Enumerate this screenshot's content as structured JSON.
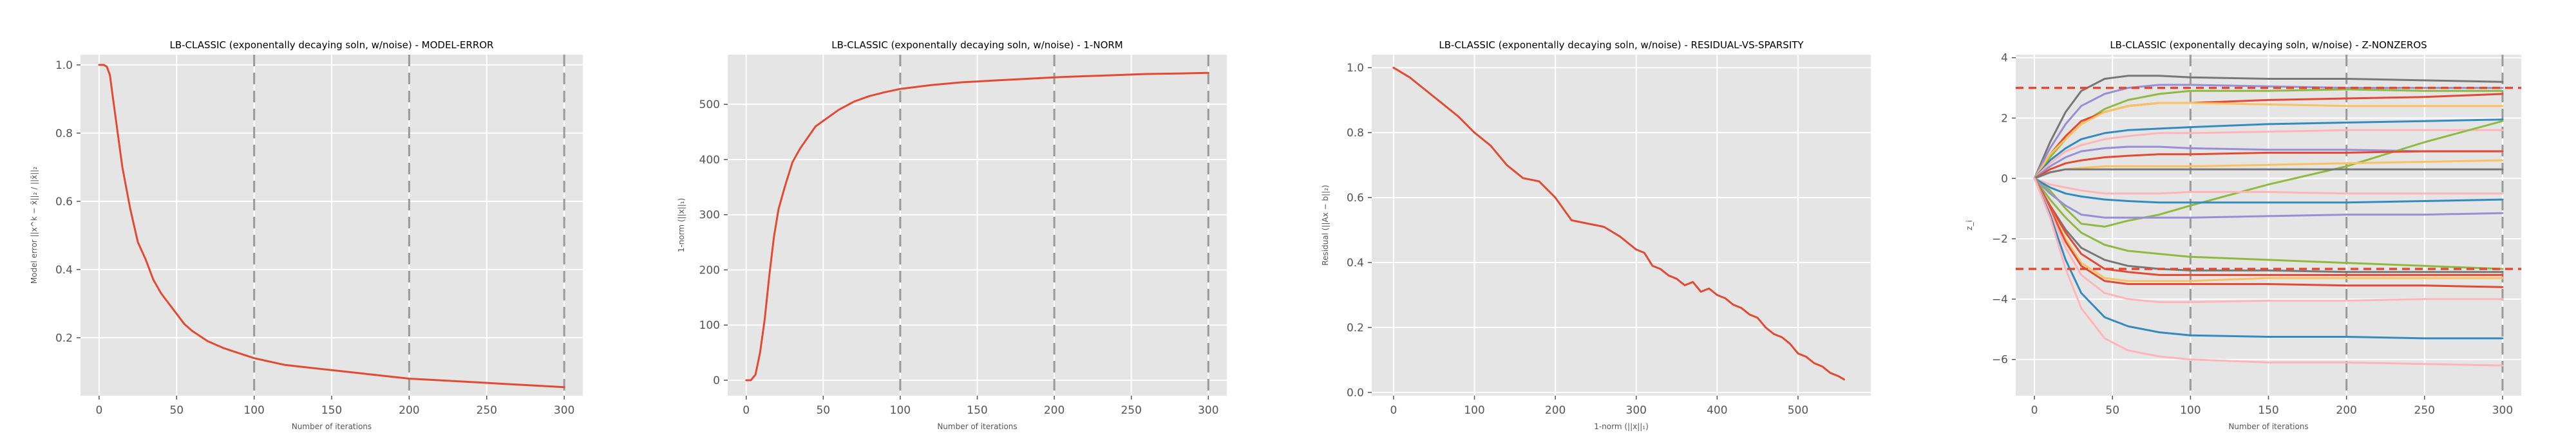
{
  "chart_data": [
    {
      "id": "model-error",
      "type": "line",
      "title": "LB-CLASSIC (exponentally decaying soln, w/noise) - MODEL-ERROR",
      "xlabel": "Number of iterations",
      "ylabel": "Model error ||x^k − x̄||₂ / ||x̄||₂",
      "xlim": [
        -12,
        312
      ],
      "ylim": [
        0.03,
        1.03
      ],
      "xticks": [
        0,
        50,
        100,
        150,
        200,
        250,
        300
      ],
      "yticks": [
        0.2,
        0.4,
        0.6,
        0.8,
        1.0
      ],
      "ytick_labels": [
        "0.2",
        "0.4",
        "0.6",
        "0.8",
        "1.0"
      ],
      "grid": true,
      "vlines": [
        100,
        200,
        300
      ],
      "series": [
        {
          "color": "#e24a33",
          "x": [
            0,
            3,
            5,
            7,
            9,
            12,
            15,
            20,
            25,
            30,
            35,
            40,
            45,
            50,
            55,
            60,
            70,
            80,
            90,
            100,
            110,
            120,
            140,
            160,
            180,
            200,
            220,
            240,
            260,
            280,
            300
          ],
          "y": [
            1.0,
            1.0,
            0.995,
            0.97,
            0.9,
            0.8,
            0.7,
            0.58,
            0.48,
            0.43,
            0.37,
            0.33,
            0.3,
            0.27,
            0.24,
            0.22,
            0.19,
            0.17,
            0.155,
            0.14,
            0.13,
            0.12,
            0.11,
            0.1,
            0.09,
            0.08,
            0.075,
            0.07,
            0.065,
            0.06,
            0.055
          ]
        }
      ]
    },
    {
      "id": "one-norm",
      "type": "line",
      "title": "LB-CLASSIC (exponentally decaying soln, w/noise) - 1-NORM",
      "xlabel": "Number of iterations",
      "ylabel": "1-norm (||x||₁)",
      "xlim": [
        -12,
        312
      ],
      "ylim": [
        -28,
        590
      ],
      "xticks": [
        0,
        50,
        100,
        150,
        200,
        250,
        300
      ],
      "yticks": [
        0,
        100,
        200,
        300,
        400,
        500
      ],
      "ytick_labels": [
        "0",
        "100",
        "200",
        "300",
        "400",
        "500"
      ],
      "grid": true,
      "vlines": [
        100,
        200,
        300
      ],
      "series": [
        {
          "color": "#e24a33",
          "x": [
            0,
            3,
            6,
            9,
            12,
            15,
            18,
            21,
            25,
            30,
            35,
            40,
            45,
            50,
            60,
            70,
            80,
            90,
            100,
            120,
            140,
            160,
            180,
            200,
            220,
            240,
            260,
            280,
            300
          ],
          "y": [
            0,
            0,
            10,
            50,
            110,
            190,
            260,
            310,
            350,
            395,
            420,
            440,
            460,
            470,
            490,
            505,
            515,
            522,
            528,
            535,
            540,
            543,
            546,
            549,
            551,
            553,
            555,
            556,
            557
          ]
        }
      ]
    },
    {
      "id": "residual-vs-sparsity",
      "type": "line",
      "title": "LB-CLASSIC (exponentally decaying soln, w/noise) - RESIDUAL-VS-SPARSITY",
      "xlabel": "1-norm (||x||₁)",
      "ylabel": "Residual (||Ax − b||₂)",
      "xlim": [
        -27,
        590
      ],
      "ylim": [
        -0.01,
        1.04
      ],
      "xticks": [
        0,
        100,
        200,
        300,
        400,
        500
      ],
      "yticks": [
        0.0,
        0.2,
        0.4,
        0.6,
        0.8,
        1.0
      ],
      "ytick_labels": [
        "0.0",
        "0.2",
        "0.4",
        "0.6",
        "0.8",
        "1.0"
      ],
      "grid": true,
      "vlines": [],
      "series": [
        {
          "color": "#e24a33",
          "x": [
            0,
            20,
            40,
            60,
            80,
            100,
            120,
            140,
            160,
            180,
            200,
            220,
            240,
            260,
            280,
            300,
            310,
            320,
            330,
            340,
            350,
            360,
            370,
            380,
            390,
            400,
            410,
            420,
            430,
            440,
            450,
            460,
            470,
            480,
            490,
            500,
            510,
            520,
            530,
            540,
            550,
            557
          ],
          "y": [
            1.0,
            0.97,
            0.93,
            0.89,
            0.85,
            0.8,
            0.76,
            0.7,
            0.66,
            0.65,
            0.6,
            0.53,
            0.52,
            0.51,
            0.48,
            0.44,
            0.43,
            0.39,
            0.38,
            0.36,
            0.35,
            0.33,
            0.34,
            0.31,
            0.32,
            0.3,
            0.29,
            0.27,
            0.26,
            0.24,
            0.23,
            0.2,
            0.18,
            0.17,
            0.15,
            0.12,
            0.11,
            0.09,
            0.08,
            0.06,
            0.05,
            0.04
          ]
        }
      ]
    },
    {
      "id": "z-nonzeros",
      "type": "line",
      "title": "LB-CLASSIC (exponentally decaying soln, w/noise) - Z-NONZEROS",
      "xlabel": "Number of iterations",
      "ylabel": "z_i",
      "xlim": [
        -12,
        312
      ],
      "ylim": [
        -7.2,
        4.1
      ],
      "xticks": [
        0,
        50,
        100,
        150,
        200,
        250,
        300
      ],
      "yticks": [
        -6,
        -4,
        -2,
        0,
        2,
        4
      ],
      "ytick_labels": [
        "−6",
        "−4",
        "−2",
        "0",
        "2",
        "4"
      ],
      "grid": true,
      "vlines": [
        100,
        200,
        300
      ],
      "hlines": [
        3,
        -3
      ],
      "hline_color": "#e24a33",
      "x": [
        0,
        10,
        20,
        30,
        45,
        60,
        80,
        100,
        150,
        200,
        250,
        300
      ],
      "series": [
        {
          "color": "#777777",
          "y": [
            0,
            1.2,
            2.2,
            2.9,
            3.3,
            3.4,
            3.4,
            3.35,
            3.3,
            3.3,
            3.25,
            3.2
          ]
        },
        {
          "color": "#988ed5",
          "y": [
            0,
            1.0,
            1.8,
            2.4,
            2.8,
            3.0,
            3.1,
            3.1,
            3.05,
            3.0,
            3.0,
            3.0
          ]
        },
        {
          "color": "#8eba42",
          "y": [
            0,
            0.7,
            1.3,
            1.8,
            2.3,
            2.6,
            2.8,
            2.9,
            2.9,
            2.95,
            2.9,
            2.9
          ]
        },
        {
          "color": "#e24a33",
          "y": [
            0,
            0.8,
            1.4,
            1.9,
            2.2,
            2.4,
            2.5,
            2.5,
            2.6,
            2.65,
            2.7,
            2.8
          ]
        },
        {
          "color": "#fbc15e",
          "y": [
            0,
            0.8,
            1.3,
            1.8,
            2.2,
            2.4,
            2.5,
            2.5,
            2.45,
            2.4,
            2.4,
            2.4
          ]
        },
        {
          "color": "#348abd",
          "y": [
            0,
            0.6,
            1.0,
            1.3,
            1.5,
            1.6,
            1.65,
            1.7,
            1.8,
            1.85,
            1.9,
            1.95
          ]
        },
        {
          "color": "#ffb5b8",
          "y": [
            0,
            0.5,
            0.9,
            1.1,
            1.3,
            1.4,
            1.5,
            1.5,
            1.55,
            1.6,
            1.6,
            1.6
          ]
        },
        {
          "color": "#988ed5",
          "y": [
            0,
            0.4,
            0.7,
            0.9,
            1.0,
            1.05,
            1.05,
            1.0,
            0.95,
            0.95,
            0.9,
            0.9
          ]
        },
        {
          "color": "#8eba42",
          "y": [
            0,
            -0.4,
            -1.0,
            -1.5,
            -1.6,
            -1.4,
            -1.2,
            -0.9,
            -0.2,
            0.4,
            1.2,
            1.9
          ]
        },
        {
          "color": "#e24a33",
          "y": [
            0,
            0.3,
            0.5,
            0.6,
            0.7,
            0.75,
            0.8,
            0.8,
            0.85,
            0.85,
            0.9,
            0.9
          ]
        },
        {
          "color": "#fbc15e",
          "y": [
            0,
            0.2,
            0.3,
            0.35,
            0.4,
            0.4,
            0.4,
            0.4,
            0.45,
            0.5,
            0.55,
            0.6
          ]
        },
        {
          "color": "#777777",
          "y": [
            0,
            0.2,
            0.3,
            0.3,
            0.3,
            0.3,
            0.3,
            0.3,
            0.3,
            0.3,
            0.3,
            0.3
          ]
        },
        {
          "color": "#ffb5b8",
          "y": [
            0,
            -0.2,
            -0.3,
            -0.4,
            -0.5,
            -0.5,
            -0.5,
            -0.45,
            -0.45,
            -0.5,
            -0.5,
            -0.5
          ]
        },
        {
          "color": "#348abd",
          "y": [
            0,
            -0.3,
            -0.5,
            -0.6,
            -0.7,
            -0.75,
            -0.8,
            -0.8,
            -0.8,
            -0.8,
            -0.75,
            -0.7
          ]
        },
        {
          "color": "#988ed5",
          "y": [
            0,
            -0.5,
            -0.9,
            -1.2,
            -1.3,
            -1.3,
            -1.3,
            -1.3,
            -1.25,
            -1.2,
            -1.2,
            -1.15
          ]
        },
        {
          "color": "#8eba42",
          "y": [
            0,
            -0.7,
            -1.3,
            -1.8,
            -2.2,
            -2.4,
            -2.5,
            -2.6,
            -2.7,
            -2.8,
            -2.9,
            -3.0
          ]
        },
        {
          "color": "#777777",
          "y": [
            0,
            -0.9,
            -1.7,
            -2.3,
            -2.7,
            -2.9,
            -3.0,
            -3.05,
            -3.05,
            -3.1,
            -3.1,
            -3.1
          ]
        },
        {
          "color": "#e24a33",
          "y": [
            0,
            -0.9,
            -1.8,
            -2.5,
            -3.0,
            -3.1,
            -3.2,
            -3.2,
            -3.2,
            -3.2,
            -3.2,
            -3.2
          ]
        },
        {
          "color": "#fbc15e",
          "y": [
            0,
            -1.0,
            -2.0,
            -2.8,
            -3.3,
            -3.4,
            -3.4,
            -3.4,
            -3.3,
            -3.3,
            -3.3,
            -3.3
          ]
        },
        {
          "color": "#e24a33",
          "y": [
            0,
            -1.0,
            -2.1,
            -2.9,
            -3.4,
            -3.5,
            -3.5,
            -3.5,
            -3.5,
            -3.55,
            -3.55,
            -3.6
          ]
        },
        {
          "color": "#ffb5b8",
          "y": [
            0,
            -1.1,
            -2.3,
            -3.2,
            -3.8,
            -4.0,
            -4.1,
            -4.1,
            -4.05,
            -4.05,
            -4.0,
            -4.0
          ]
        },
        {
          "color": "#348abd",
          "y": [
            0,
            -1.2,
            -2.7,
            -3.8,
            -4.6,
            -4.9,
            -5.1,
            -5.2,
            -5.25,
            -5.25,
            -5.3,
            -5.3
          ]
        },
        {
          "color": "#ffb5b8",
          "y": [
            0,
            -1.3,
            -3.0,
            -4.3,
            -5.3,
            -5.7,
            -5.9,
            -6.0,
            -6.1,
            -6.1,
            -6.15,
            -6.2
          ]
        }
      ]
    }
  ]
}
